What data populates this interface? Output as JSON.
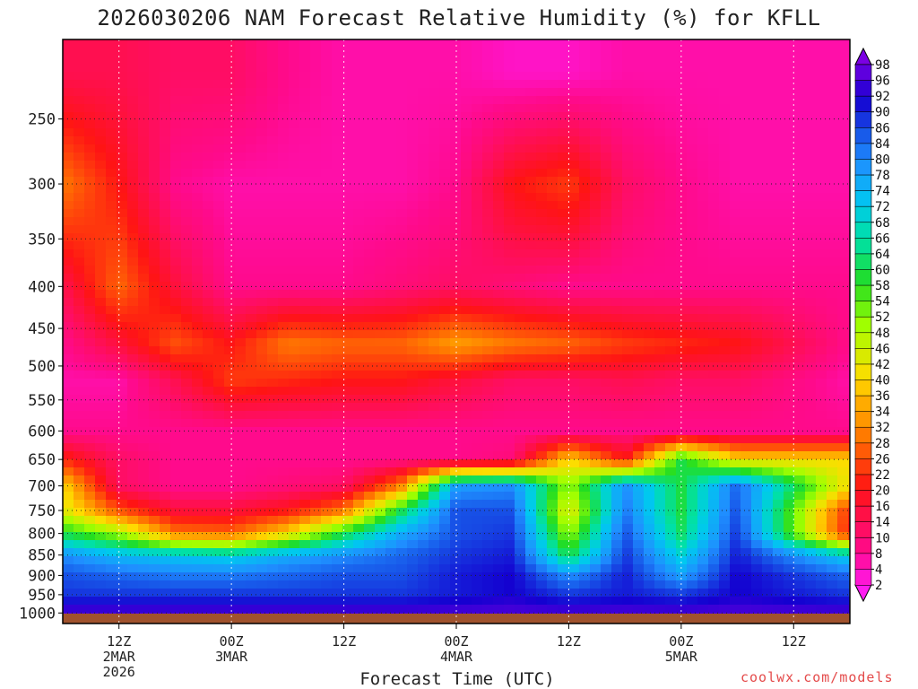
{
  "chart_data": {
    "type": "heatmap",
    "title": "2026030206 NAM Forecast Relative Humidity (%) for KFLL",
    "xlabel": "Forecast Time (UTC)",
    "ylabel": "",
    "y_scale": "log-pressure, inverted",
    "y_range_hpa": [
      1030,
      200
    ],
    "y_ticks": [
      250,
      300,
      350,
      400,
      450,
      500,
      550,
      600,
      650,
      700,
      750,
      800,
      850,
      900,
      950,
      1000
    ],
    "x_range_hours_from_2026030206": [
      0,
      84
    ],
    "x_ticks": [
      {
        "hour": 6,
        "label": "12Z",
        "date": "2MAR",
        "year": "2026"
      },
      {
        "hour": 18,
        "label": "00Z",
        "date": "3MAR",
        "year": ""
      },
      {
        "hour": 30,
        "label": "12Z",
        "date": "",
        "year": ""
      },
      {
        "hour": 42,
        "label": "00Z",
        "date": "4MAR",
        "year": ""
      },
      {
        "hour": 54,
        "label": "12Z",
        "date": "",
        "year": ""
      },
      {
        "hour": 66,
        "label": "00Z",
        "date": "5MAR",
        "year": ""
      },
      {
        "hour": 78,
        "label": "12Z",
        "date": "",
        "year": ""
      }
    ],
    "grid": true,
    "colorbar_levels": [
      2,
      4,
      8,
      10,
      14,
      16,
      20,
      22,
      26,
      28,
      32,
      34,
      36,
      40,
      42,
      46,
      48,
      52,
      54,
      58,
      60,
      64,
      66,
      68,
      72,
      74,
      78,
      80,
      84,
      86,
      90,
      92,
      96,
      98
    ],
    "colorbar_labels": [
      "98",
      "96",
      "92",
      "90",
      "86",
      "84",
      "80",
      "78",
      "74",
      "72",
      "68",
      "66",
      "64",
      "60",
      "58",
      "54",
      "52",
      "48",
      "46",
      "42",
      "40",
      "36",
      "34",
      "32",
      "28",
      "26",
      "22",
      "20",
      "16",
      "14",
      "10",
      "8",
      "4",
      "2"
    ],
    "legend": "right colorbar",
    "approx_profiles": [
      {
        "pressure_hpa": 220,
        "rh": [
          14,
          14,
          12,
          12,
          8,
          6,
          6,
          6,
          4,
          4,
          6,
          6,
          6,
          6
        ]
      },
      {
        "pressure_hpa": 300,
        "rh": [
          30,
          20,
          8,
          6,
          6,
          6,
          6,
          8,
          20,
          24,
          12,
          8,
          6,
          6
        ]
      },
      {
        "pressure_hpa": 400,
        "rh": [
          14,
          28,
          16,
          8,
          8,
          8,
          10,
          12,
          10,
          8,
          8,
          8,
          8,
          8
        ]
      },
      {
        "pressure_hpa": 470,
        "rh": [
          8,
          16,
          26,
          20,
          30,
          28,
          28,
          34,
          30,
          28,
          24,
          22,
          20,
          8
        ]
      },
      {
        "pressure_hpa": 520,
        "rh": [
          6,
          6,
          14,
          24,
          22,
          20,
          20,
          16,
          12,
          12,
          14,
          12,
          12,
          6
        ]
      },
      {
        "pressure_hpa": 600,
        "rh": [
          8,
          8,
          8,
          8,
          8,
          8,
          8,
          8,
          8,
          8,
          8,
          8,
          8,
          8
        ]
      },
      {
        "pressure_hpa": 650,
        "rh": [
          22,
          12,
          8,
          8,
          8,
          8,
          8,
          8,
          10,
          40,
          20,
          60,
          40,
          40
        ]
      },
      {
        "pressure_hpa": 700,
        "rh": [
          40,
          12,
          8,
          8,
          10,
          12,
          30,
          78,
          80,
          50,
          80,
          60,
          84,
          40
        ]
      },
      {
        "pressure_hpa": 750,
        "rh": [
          44,
          26,
          16,
          16,
          20,
          30,
          60,
          86,
          86,
          42,
          82,
          60,
          86,
          22
        ]
      },
      {
        "pressure_hpa": 800,
        "rh": [
          60,
          50,
          30,
          28,
          40,
          60,
          76,
          86,
          88,
          50,
          86,
          62,
          88,
          20
        ]
      },
      {
        "pressure_hpa": 850,
        "rh": [
          80,
          74,
          72,
          70,
          76,
          80,
          84,
          88,
          90,
          60,
          88,
          70,
          90,
          70
        ]
      },
      {
        "pressure_hpa": 900,
        "rh": [
          86,
          84,
          82,
          82,
          84,
          86,
          86,
          90,
          92,
          80,
          90,
          78,
          92,
          84
        ]
      },
      {
        "pressure_hpa": 950,
        "rh": [
          88,
          88,
          88,
          88,
          88,
          88,
          88,
          90,
          92,
          88,
          90,
          88,
          92,
          88
        ]
      },
      {
        "pressure_hpa": 1000,
        "rh": [
          96,
          96,
          96,
          96,
          96,
          96,
          96,
          96,
          96,
          96,
          96,
          96,
          96,
          96
        ]
      }
    ],
    "profile_hours": [
      0,
      6,
      12,
      18,
      24,
      30,
      36,
      42,
      48,
      54,
      60,
      66,
      72,
      84
    ]
  },
  "footer": {
    "credit": "coolwx.com/models"
  }
}
